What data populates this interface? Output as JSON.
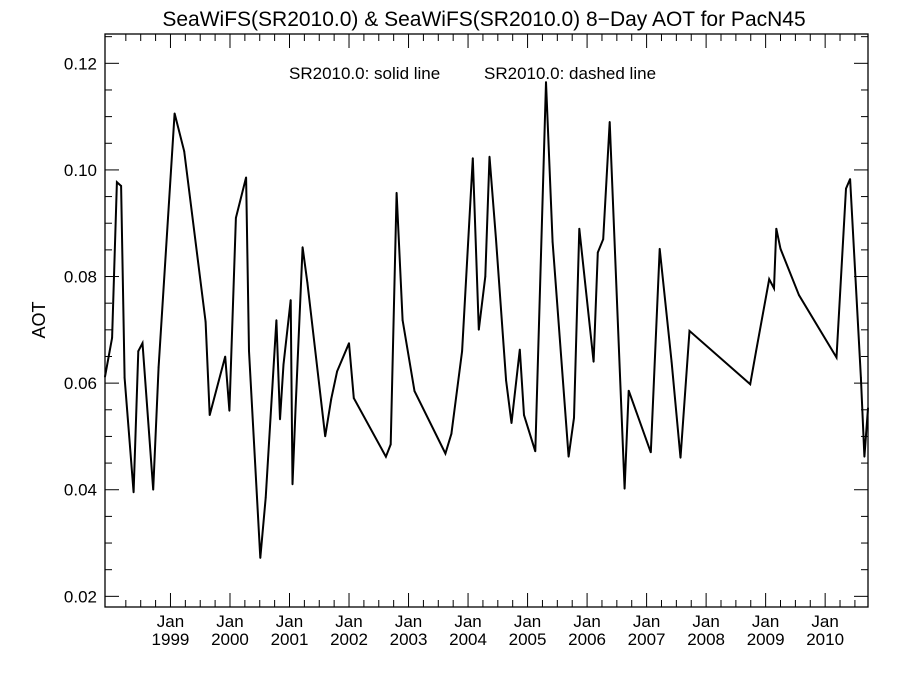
{
  "chart_data": {
    "type": "line",
    "title": "SeaWiFS(SR2010.0) & SeaWiFS(SR2010.0) 8−Day AOT for PacN45",
    "ylabel": "AOT",
    "xlabel": "",
    "annotation_solid": "SR2010.0: solid line",
    "annotation_dashed": "SR2010.0: dashed line",
    "xlim": [
      1997.9,
      2010.72
    ],
    "ylim": [
      0.018,
      0.1255
    ],
    "y_ticks": [
      {
        "value": 0.02,
        "label": "0.02"
      },
      {
        "value": 0.04,
        "label": "0.04"
      },
      {
        "value": 0.06,
        "label": "0.06"
      },
      {
        "value": 0.08,
        "label": "0.08"
      },
      {
        "value": 0.1,
        "label": "0.10"
      },
      {
        "value": 0.12,
        "label": "0.12"
      }
    ],
    "x_ticks": [
      {
        "value": 1999.0,
        "month": "Jan",
        "year": "1999"
      },
      {
        "value": 2000.0,
        "month": "Jan",
        "year": "2000"
      },
      {
        "value": 2001.0,
        "month": "Jan",
        "year": "2001"
      },
      {
        "value": 2002.0,
        "month": "Jan",
        "year": "2002"
      },
      {
        "value": 2003.0,
        "month": "Jan",
        "year": "2003"
      },
      {
        "value": 2004.0,
        "month": "Jan",
        "year": "2004"
      },
      {
        "value": 2005.0,
        "month": "Jan",
        "year": "2005"
      },
      {
        "value": 2006.0,
        "month": "Jan",
        "year": "2006"
      },
      {
        "value": 2007.0,
        "month": "Jan",
        "year": "2007"
      },
      {
        "value": 2008.0,
        "month": "Jan",
        "year": "2008"
      },
      {
        "value": 2009.0,
        "month": "Jan",
        "year": "2009"
      },
      {
        "value": 2010.0,
        "month": "Jan",
        "year": "2010"
      }
    ],
    "series": [
      {
        "name": "SR2010.0",
        "style": "solid",
        "color": "#000000",
        "x": [
          1997.9,
          1998.02,
          1998.1,
          1998.17,
          1998.23,
          1998.38,
          1998.46,
          1998.53,
          1998.71,
          1998.8,
          1999.07,
          1999.23,
          1999.59,
          1999.66,
          1999.92,
          1999.99,
          2000.1,
          2000.27,
          2000.32,
          2000.51,
          2000.6,
          2000.78,
          2000.84,
          2000.9,
          2001.02,
          2001.05,
          2001.1,
          2001.22,
          2001.3,
          2001.6,
          2001.7,
          2001.8,
          2002.0,
          2002.08,
          2002.62,
          2002.7,
          2002.8,
          2002.9,
          2003.1,
          2003.62,
          2003.72,
          2003.9,
          2004.08,
          2004.18,
          2004.29,
          2004.36,
          2004.47,
          2004.64,
          2004.73,
          2004.87,
          2004.94,
          2005.13,
          2005.31,
          2005.42,
          2005.69,
          2005.78,
          2005.87,
          2006.11,
          2006.18,
          2006.27,
          2006.38,
          2006.63,
          2006.7,
          2007.07,
          2007.22,
          2007.42,
          2007.57,
          2007.72,
          2008.74,
          2008.84,
          2009.06,
          2009.14,
          2009.18,
          2009.25,
          2009.56,
          2010.19,
          2010.35,
          2010.42,
          2010.6,
          2010.66,
          2010.72
        ],
        "y": [
          0.0612,
          0.0685,
          0.0977,
          0.097,
          0.061,
          0.0395,
          0.066,
          0.0675,
          0.04,
          0.063,
          0.1106,
          0.1035,
          0.0715,
          0.054,
          0.065,
          0.0548,
          0.091,
          0.0986,
          0.066,
          0.0272,
          0.0385,
          0.0718,
          0.0532,
          0.0635,
          0.0756,
          0.041,
          0.055,
          0.0855,
          0.0788,
          0.05,
          0.057,
          0.0622,
          0.0675,
          0.0572,
          0.0462,
          0.0485,
          0.0957,
          0.0718,
          0.0585,
          0.0468,
          0.0505,
          0.066,
          0.1022,
          0.07,
          0.08,
          0.1025,
          0.087,
          0.0605,
          0.0525,
          0.0663,
          0.054,
          0.0472,
          0.1165,
          0.0865,
          0.0462,
          0.0535,
          0.089,
          0.064,
          0.0845,
          0.087,
          0.109,
          0.0402,
          0.0586,
          0.047,
          0.0852,
          0.064,
          0.046,
          0.0698,
          0.0598,
          0.066,
          0.0795,
          0.0778,
          0.089,
          0.0852,
          0.0765,
          0.0648,
          0.0965,
          0.0983,
          0.061,
          0.0462,
          0.0553
        ]
      }
    ]
  }
}
